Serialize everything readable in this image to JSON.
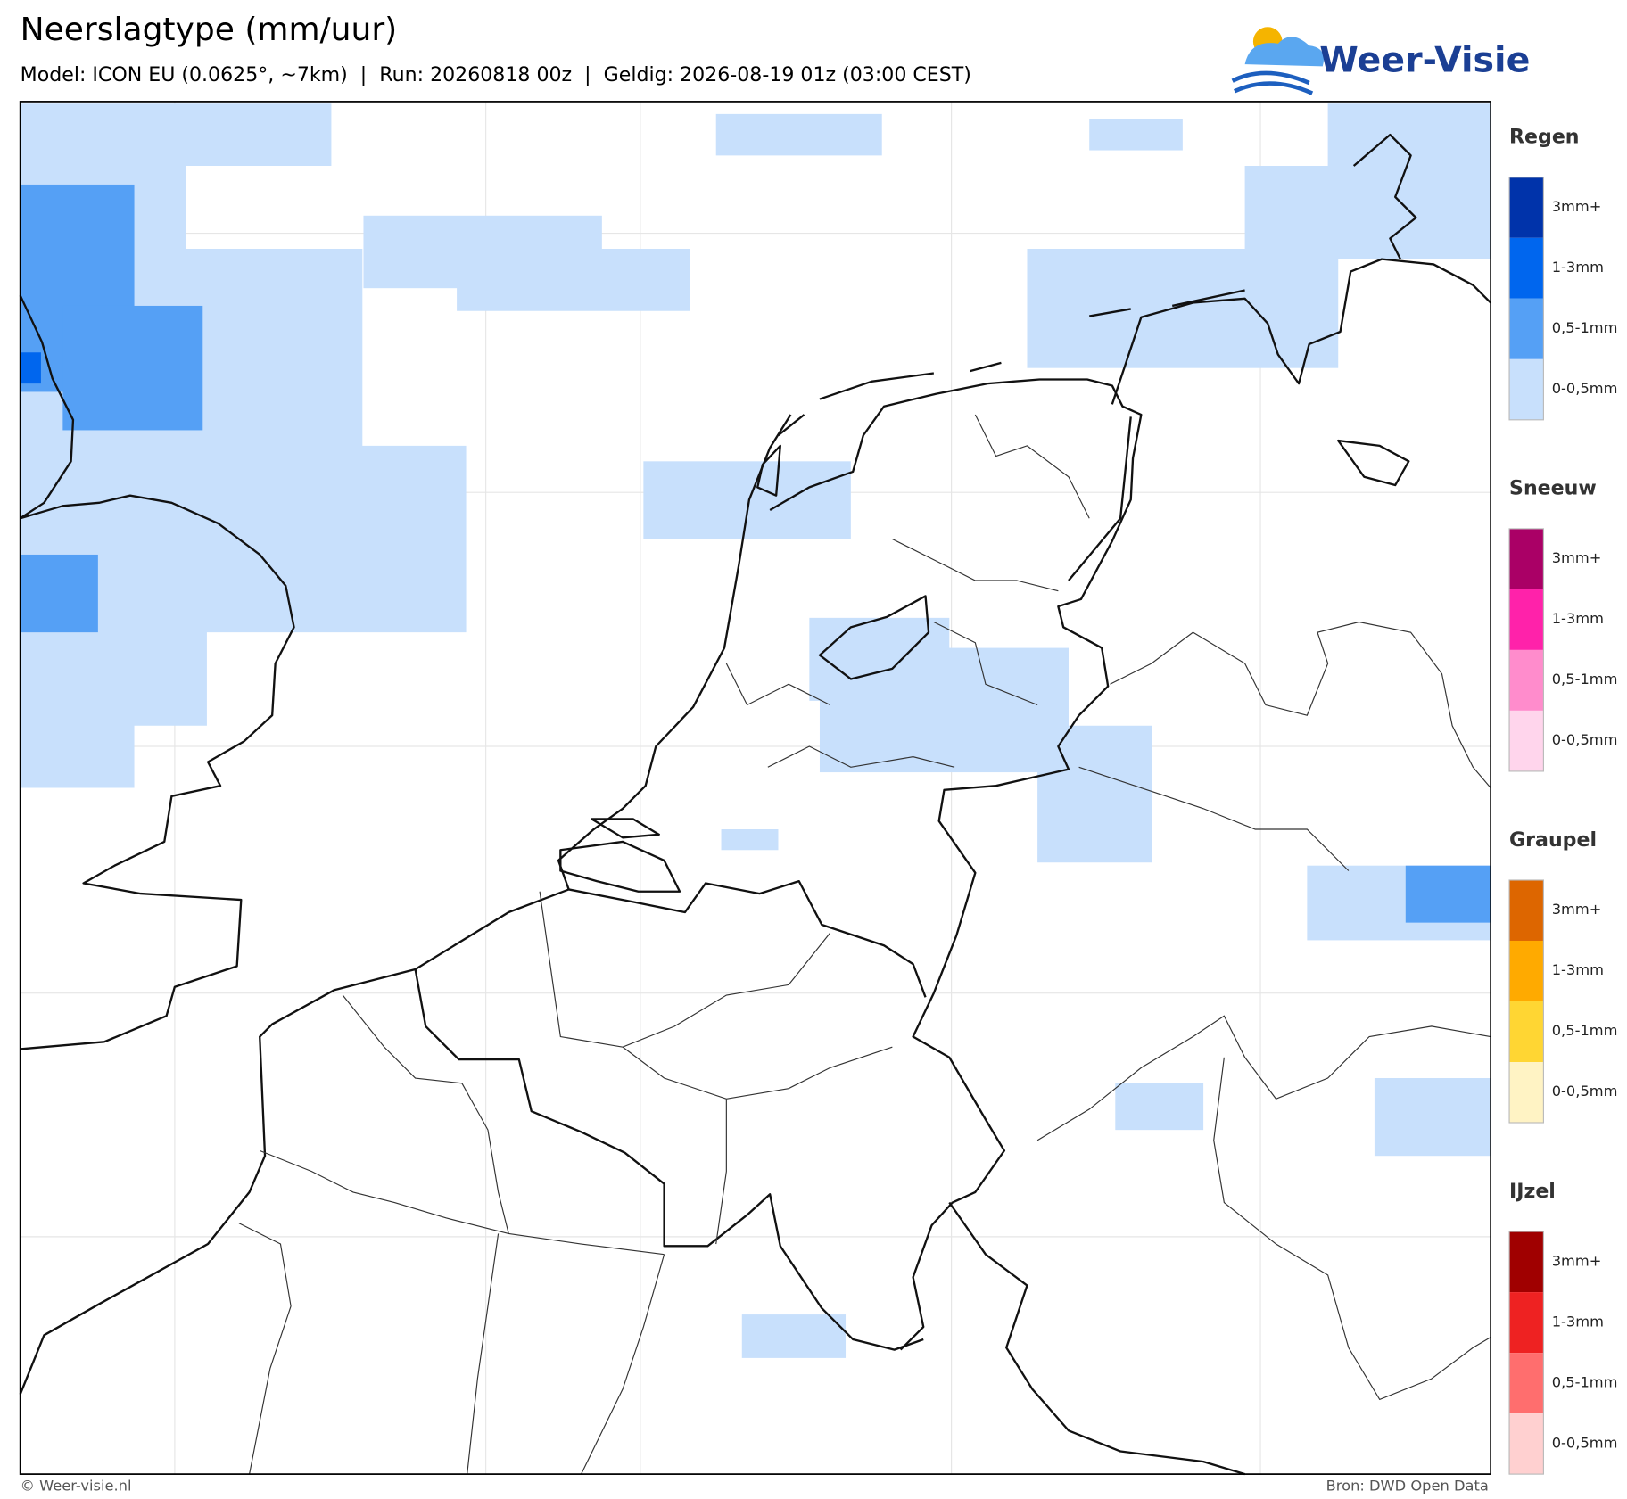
{
  "header": {
    "title": "Neerslagtype (mm/uur)",
    "subtitle": "Model: ICON EU (0.0625°, ~7km)  |  Run: 20260818 00z  |  Geldig: 2026-08-19 01z (03:00 CEST)",
    "logo": "Weer-Visie"
  },
  "legend": [
    {
      "title": "Regen",
      "items": [
        {
          "label": "3mm+",
          "color": "#0033aa"
        },
        {
          "label": "1-3mm",
          "color": "#0066ee"
        },
        {
          "label": "0,5-1mm",
          "color": "#55a0f5"
        },
        {
          "label": "0-0,5mm",
          "color": "#c8e0fc"
        }
      ]
    },
    {
      "title": "Sneeuw",
      "items": [
        {
          "label": "3mm+",
          "color": "#aa0066"
        },
        {
          "label": "1-3mm",
          "color": "#ff22aa"
        },
        {
          "label": "0,5-1mm",
          "color": "#ff8ccc"
        },
        {
          "label": "0-0,5mm",
          "color": "#ffd5ec"
        }
      ]
    },
    {
      "title": "Graupel",
      "items": [
        {
          "label": "3mm+",
          "color": "#dd6600"
        },
        {
          "label": "1-3mm",
          "color": "#ffaa00"
        },
        {
          "label": "0,5-1mm",
          "color": "#ffd633"
        },
        {
          "label": "0-0,5mm",
          "color": "#fff3c4"
        }
      ]
    },
    {
      "title": "IJzel",
      "items": [
        {
          "label": "3mm+",
          "color": "#a00000"
        },
        {
          "label": "1-3mm",
          "color": "#ee2222"
        },
        {
          "label": "0,5-1mm",
          "color": "#ff6e6e"
        },
        {
          "label": "0-0,5mm",
          "color": "#ffd0d0"
        }
      ]
    }
  ],
  "footer": {
    "left": "© Weer-visie.nl",
    "right": "Bron: DWD Open Data"
  }
}
